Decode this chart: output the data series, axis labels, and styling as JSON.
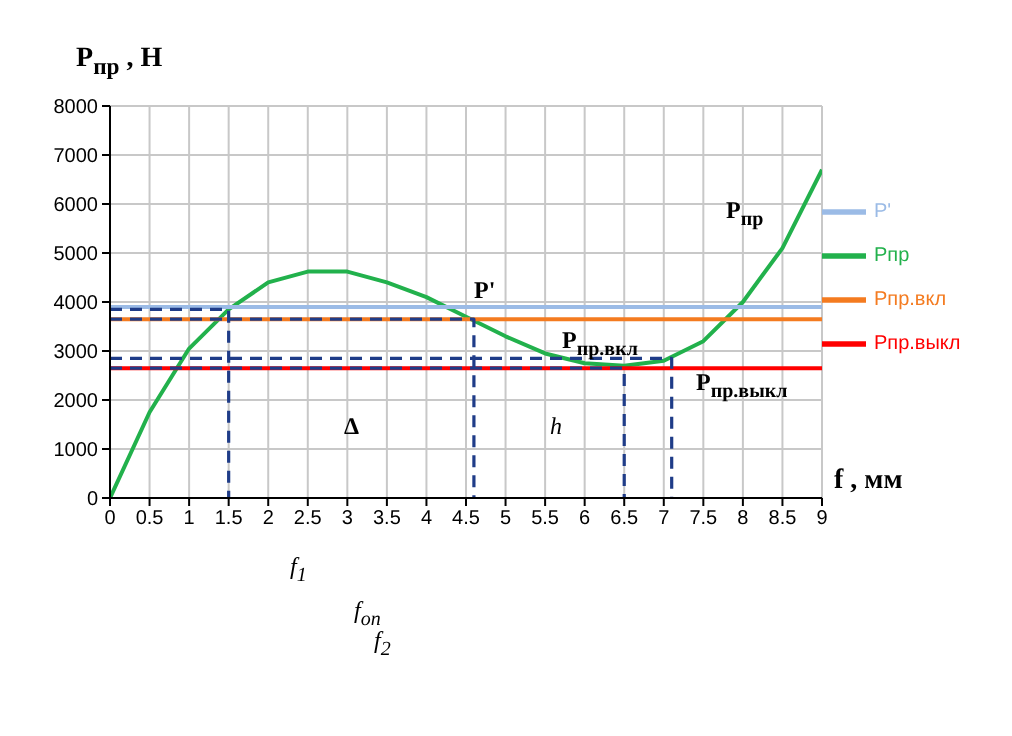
{
  "chart_data": {
    "type": "line",
    "xlabel": "f , мм",
    "ylabel": "P$_{пр}$ , Н",
    "xlim": [
      0,
      9
    ],
    "xticks": [
      0,
      0.5,
      1,
      1.5,
      2,
      2.5,
      3,
      3.5,
      4,
      4.5,
      5,
      5.5,
      6,
      6.5,
      7,
      7.5,
      8,
      8.5,
      9
    ],
    "ylim": [
      0,
      8000
    ],
    "yticks": [
      0,
      1000,
      2000,
      3000,
      4000,
      5000,
      6000,
      7000,
      8000
    ],
    "grid": true,
    "legend": "right",
    "marker": "none",
    "series": [
      {
        "name": "Рпр",
        "color": "#22b14c",
        "x": [
          0,
          0.5,
          1,
          1.5,
          2,
          2.5,
          3,
          3.5,
          4,
          4.5,
          5,
          5.5,
          6,
          6.5,
          7,
          7.5,
          8,
          8.5,
          9
        ],
        "values": [
          0,
          1750,
          3050,
          3850,
          4400,
          4620,
          4620,
          4400,
          4100,
          3700,
          3300,
          2950,
          2750,
          2700,
          2800,
          3200,
          4000,
          5100,
          6700
        ]
      },
      {
        "name": "Рпр.вкл",
        "color": "#f47b20",
        "x": [
          0,
          9
        ],
        "values": [
          3650,
          3650
        ]
      },
      {
        "name": "Рпр.выкл",
        "color": "#ff0000",
        "x": [
          0,
          9
        ],
        "values": [
          2650,
          2650
        ]
      },
      {
        "name": "P'",
        "color": "#9bbbe6",
        "x": [
          0,
          9
        ],
        "values": [
          3900,
          3900
        ]
      },
      {
        "color": "#1f3c88",
        "line_style": "dashed",
        "x": [
          0,
          1.5,
          1.5
        ],
        "values": [
          3850,
          3850,
          0
        ]
      },
      {
        "color": "#1f3c88",
        "line_style": "dashed",
        "x": [
          0,
          4.6,
          4.6
        ],
        "values": [
          3650,
          3650,
          0
        ]
      },
      {
        "color": "#1f3c88",
        "line_style": "dashed",
        "x": [
          0,
          7.1,
          7.1
        ],
        "values": [
          2850,
          2850,
          0
        ]
      },
      {
        "color": "#1f3c88",
        "line_style": "dashed",
        "x": [
          0,
          6.5,
          6.5
        ],
        "values": [
          2650,
          2650,
          0
        ]
      }
    ],
    "annotations": [
      "P'",
      "P$_{пр}$",
      "P$_{пр.вкл}$",
      "P$_{пр.выкл}$",
      "Δ",
      "h",
      "f$_{1}$",
      "f$_{оп}$",
      "f$_{2}$"
    ]
  }
}
